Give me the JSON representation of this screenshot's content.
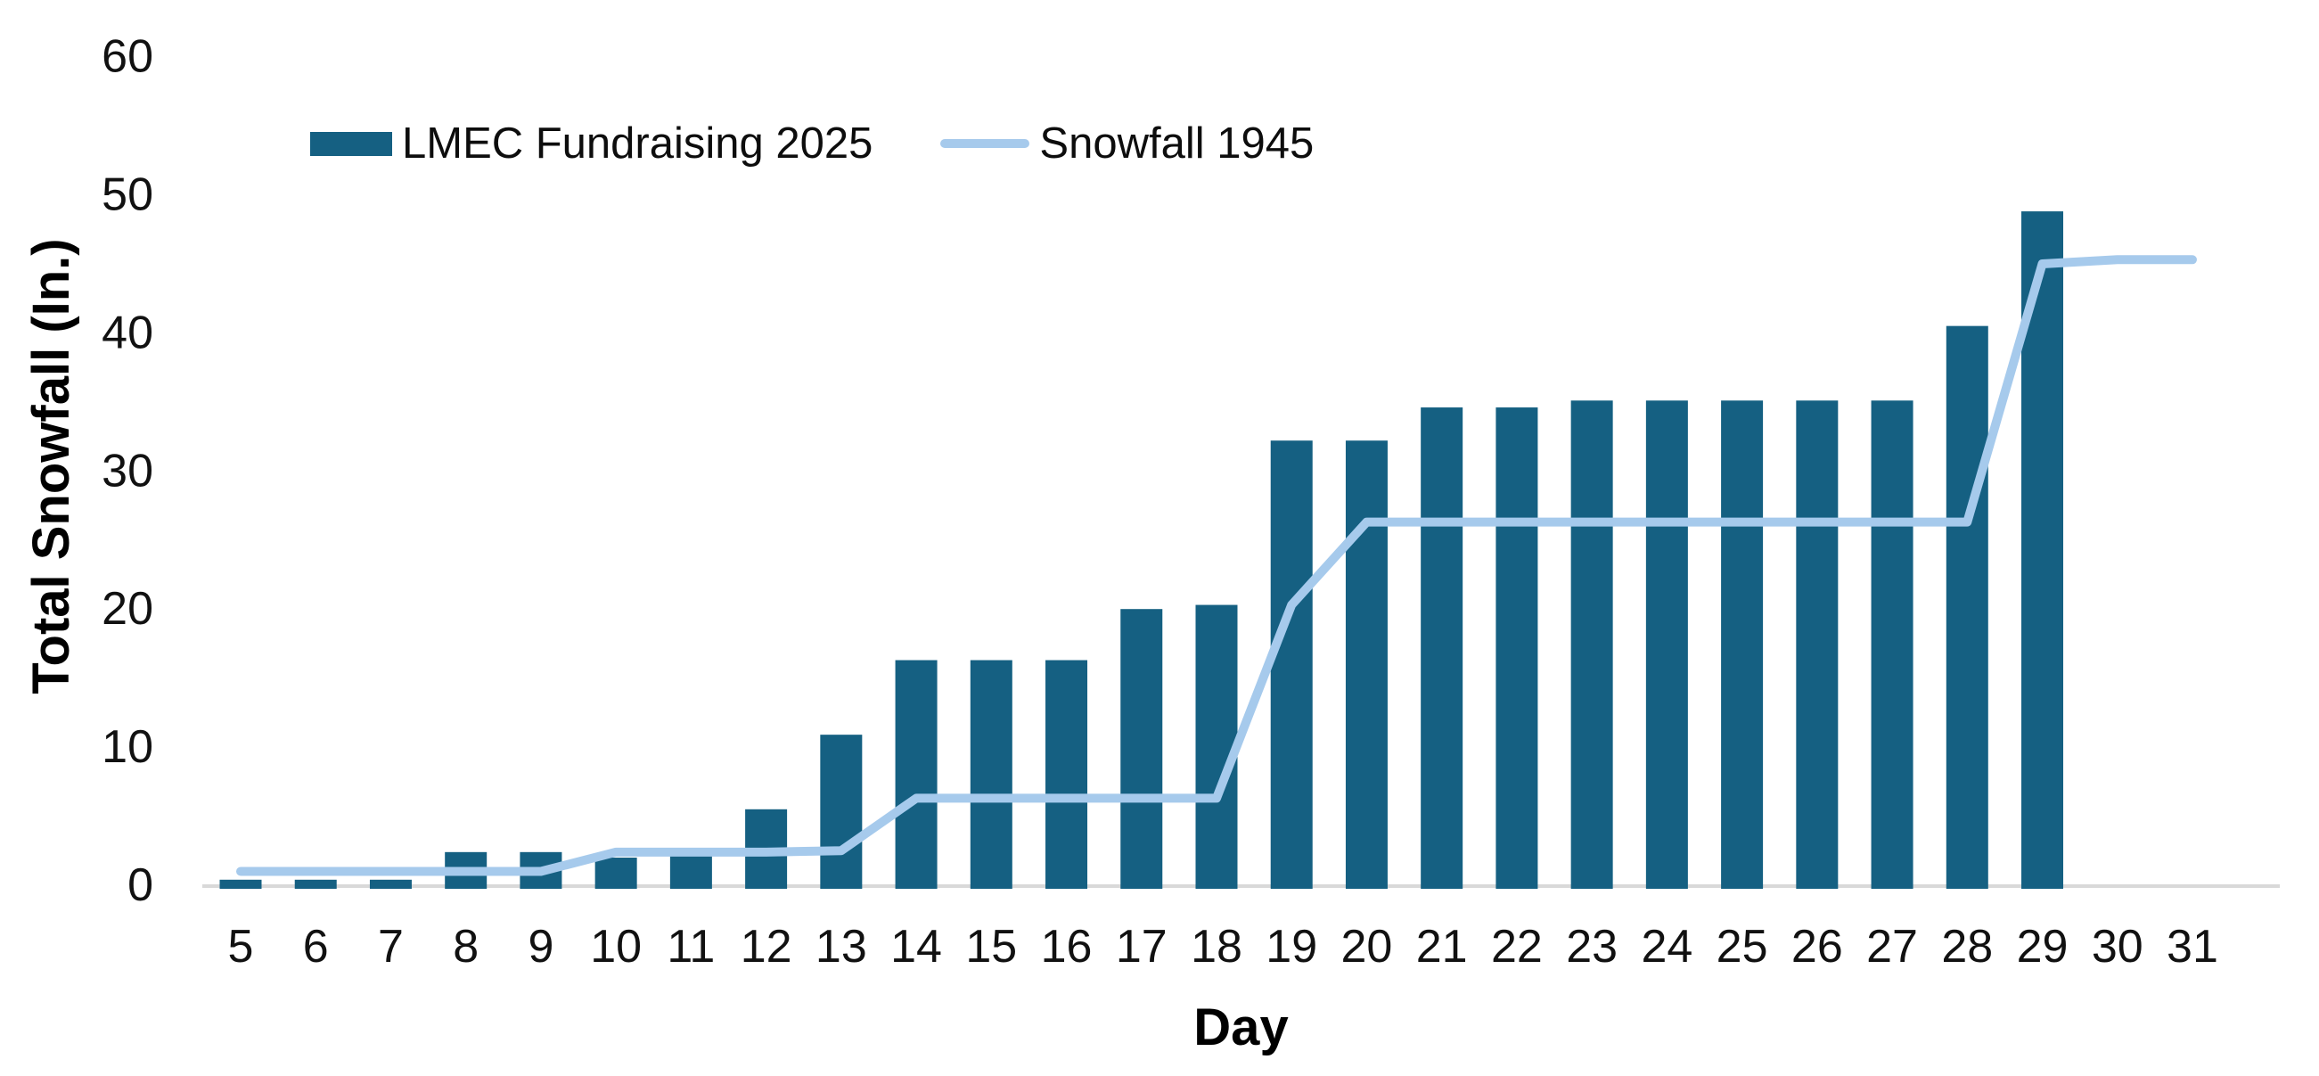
{
  "chart_data": {
    "type": "combo",
    "title": "",
    "xlabel": "Day",
    "ylabel": "Total Snowfall (In.)",
    "categories": [
      "5",
      "6",
      "7",
      "8",
      "9",
      "10",
      "11",
      "12",
      "13",
      "14",
      "15",
      "16",
      "17",
      "18",
      "19",
      "20",
      "21",
      "22",
      "23",
      "24",
      "25",
      "26",
      "27",
      "28",
      "29",
      "30",
      "31"
    ],
    "series": [
      {
        "name": "LMEC Fundraising 2025",
        "type": "bar",
        "color": "#156082",
        "values": [
          0.4,
          0.4,
          0.4,
          2.4,
          2.4,
          2.0,
          2.2,
          5.5,
          10.9,
          16.3,
          16.3,
          16.3,
          20.0,
          20.3,
          32.2,
          32.2,
          34.6,
          34.6,
          35.1,
          35.1,
          35.1,
          35.1,
          35.1,
          40.5,
          48.8,
          null,
          null
        ]
      },
      {
        "name": "Snowfall 1945",
        "type": "line",
        "color": "#A6CAEC",
        "values": [
          1.0,
          1.0,
          1.0,
          1.0,
          1.0,
          2.4,
          2.4,
          2.4,
          2.5,
          6.3,
          6.3,
          6.3,
          6.3,
          6.3,
          20.3,
          26.3,
          26.3,
          26.3,
          26.3,
          26.3,
          26.3,
          26.3,
          26.3,
          26.3,
          45.0,
          45.3,
          45.3
        ]
      }
    ],
    "ylim": [
      0,
      60
    ],
    "y_ticks": [
      0,
      10,
      20,
      30,
      40,
      50,
      60
    ],
    "grid": false,
    "legend_position": "top-inside",
    "axis_line_color": "#D9D9D9",
    "text_color": "#111111"
  }
}
